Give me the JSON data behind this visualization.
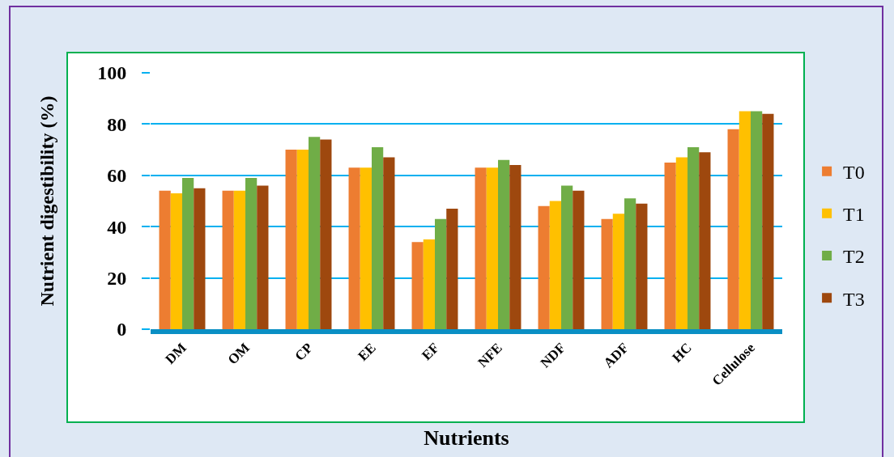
{
  "chart_data": {
    "type": "bar",
    "xlabel": "Nutrients",
    "ylabel": "Nutrient digestibility (%)",
    "categories": [
      "DM",
      "OM",
      "CP",
      "EE",
      "EF",
      "NFE",
      "NDF",
      "ADF",
      "HC",
      "Cellulose"
    ],
    "series": [
      {
        "name": "T0",
        "color": "#ed7d31",
        "values": [
          54,
          54,
          70,
          63,
          34,
          63,
          48,
          43,
          65,
          78
        ]
      },
      {
        "name": "T1",
        "color": "#ffc000",
        "values": [
          53,
          54,
          70,
          63,
          35,
          63,
          50,
          45,
          67,
          85
        ]
      },
      {
        "name": "T2",
        "color": "#70ad47",
        "values": [
          59,
          59,
          75,
          71,
          43,
          66,
          56,
          51,
          71,
          85
        ]
      },
      {
        "name": "T3",
        "color": "#9e480e",
        "values": [
          55,
          56,
          74,
          67,
          47,
          64,
          54,
          49,
          69,
          84
        ]
      }
    ],
    "ylim": [
      0,
      100
    ],
    "yticks": [
      0,
      20,
      40,
      60,
      80,
      100
    ],
    "grid": "y",
    "legend": "right"
  }
}
